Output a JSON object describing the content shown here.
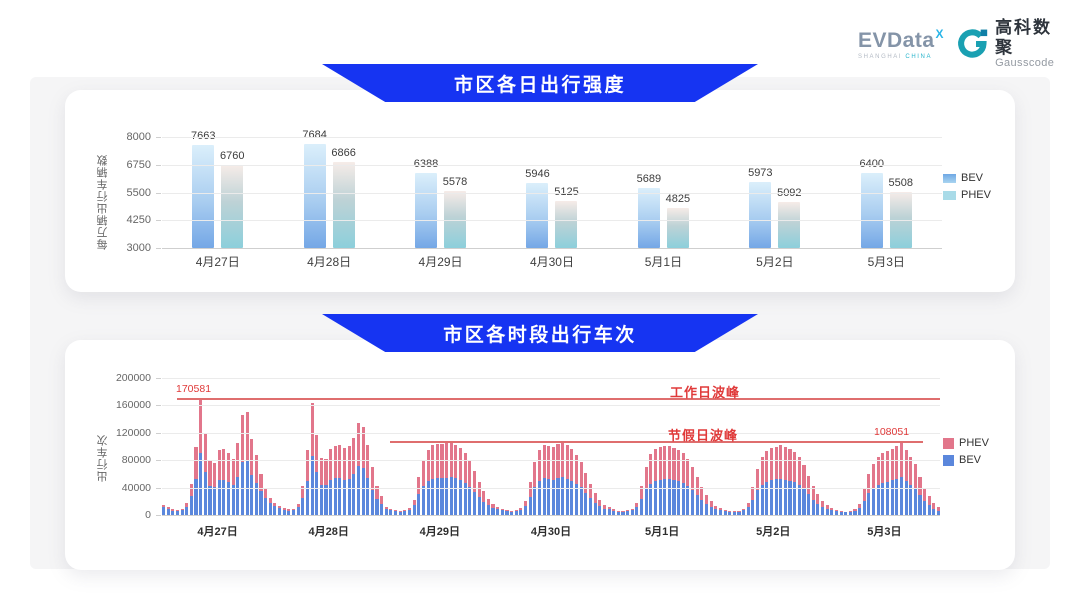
{
  "header": {
    "evdata": {
      "text": "EVData",
      "sup": "X",
      "sub_left": "SHANGHAI",
      "sub_right": "CHINA"
    },
    "gausscode": {
      "cn": "高科数聚",
      "en": "Gausscode"
    }
  },
  "colors": {
    "banner_blue": "#1634f2",
    "bev_blue": "#5b87dc",
    "phev_pink": "#e2768b",
    "annotation_red": "#e03a3a",
    "refline_red": "#df6e6e"
  },
  "chart_data": [
    {
      "type": "bar",
      "title": "市区各日出行强度",
      "ylabel": "每万辆出行车辆数",
      "xlabel": "",
      "categories": [
        "4月27日",
        "4月28日",
        "4月29日",
        "4月30日",
        "5月1日",
        "5月2日",
        "5月3日"
      ],
      "series": [
        {
          "name": "BEV",
          "values": [
            7663,
            7684,
            6388,
            5946,
            5689,
            5973,
            6400
          ]
        },
        {
          "name": "PHEV",
          "values": [
            6760,
            6866,
            5578,
            5125,
            4825,
            5092,
            5508
          ]
        }
      ],
      "ylim": [
        3000,
        8000
      ],
      "yticks": [
        3000,
        4250,
        5500,
        6750,
        8000
      ],
      "grid": true,
      "legend_position": "right",
      "legend": [
        "BEV",
        "PHEV"
      ]
    },
    {
      "type": "stacked-bar",
      "title": "市区各时段出行车次",
      "ylabel": "出行车次",
      "xlabel": "",
      "categories": [
        "4月27日",
        "4月28日",
        "4月29日",
        "4月30日",
        "5月1日",
        "5月2日",
        "5月3日"
      ],
      "ylim": [
        0,
        200000
      ],
      "yticks": [
        0,
        40000,
        80000,
        120000,
        160000,
        200000
      ],
      "grid": true,
      "legend_position": "right",
      "legend": [
        "PHEV",
        "BEV"
      ],
      "bars_per_day": 24,
      "days": [
        {
          "label": "4月27日",
          "total": [
            15200,
            11300,
            8400,
            7100,
            8800,
            17600,
            46000,
            99800,
            170581,
            118900,
            80600,
            76200,
            95300,
            96800,
            90500,
            82100,
            105600,
            145800,
            150200,
            110400,
            88300,
            60500,
            38200,
            25100
          ],
          "bev": [
            11400,
            8500,
            6300,
            5300,
            6600,
            12300,
            27600,
            52900,
            90400,
            63000,
            42700,
            40400,
            50500,
            51300,
            48000,
            43500,
            56000,
            77300,
            79600,
            58500,
            46800,
            34500,
            24800,
            17600
          ]
        },
        {
          "label": "4月28日",
          "total": [
            17800,
            13100,
            9800,
            8200,
            9100,
            16400,
            42300,
            94600,
            163800,
            117200,
            83400,
            81900,
            96100,
            100800,
            102900,
            97200,
            100300,
            111800,
            133900,
            128300,
            102700,
            69800,
            42100,
            28400
          ],
          "bev": [
            13400,
            9800,
            7400,
            6200,
            6800,
            11500,
            25400,
            50100,
            86800,
            62100,
            44200,
            43400,
            50900,
            53400,
            54500,
            51500,
            53200,
            59300,
            71000,
            68000,
            54400,
            37000,
            23200,
            15600
          ]
        },
        {
          "label": "4月29日",
          "total": [
            12100,
            9200,
            7000,
            6100,
            7200,
            10300,
            22400,
            55200,
            80100,
            95400,
            101800,
            104200,
            103100,
            104900,
            107300,
            102600,
            97800,
            89900,
            79600,
            64800,
            47900,
            34700,
            23800,
            16200
          ],
          "bev": [
            9100,
            6900,
            5300,
            4600,
            5400,
            7700,
            14600,
            30400,
            42500,
            49600,
            52900,
            54200,
            53600,
            54500,
            55800,
            53400,
            50900,
            46700,
            41400,
            33700,
            26300,
            19100,
            14300,
            9700
          ]
        },
        {
          "label": "4月30日",
          "total": [
            11900,
            9000,
            6900,
            6000,
            7100,
            10100,
            20300,
            48200,
            77800,
            94700,
            102600,
            100900,
            99200,
            103800,
            106800,
            101700,
            96300,
            88100,
            77900,
            61800,
            44600,
            31900,
            21700,
            14800
          ],
          "bev": [
            8900,
            6800,
            5200,
            4500,
            5300,
            7600,
            13200,
            26500,
            41200,
            49200,
            53400,
            52500,
            51600,
            54000,
            55500,
            52900,
            50100,
            45800,
            40500,
            32100,
            24500,
            17500,
            13000,
            8900
          ]
        },
        {
          "label": "5月1日",
          "total": [
            11200,
            8300,
            6400,
            5800,
            6900,
            9400,
            18200,
            42100,
            70300,
            88400,
            96100,
            98700,
            100600,
            100200,
            97900,
            95300,
            90200,
            82400,
            70100,
            55300,
            40200,
            29800,
            19900,
            13700
          ],
          "bev": [
            8400,
            6200,
            4900,
            4400,
            5200,
            7100,
            11800,
            23200,
            37300,
            46000,
            50000,
            51300,
            52300,
            52100,
            50900,
            49600,
            46900,
            42800,
            36500,
            28800,
            22100,
            16400,
            11900,
            8200
          ]
        },
        {
          "label": "5月2日",
          "total": [
            10400,
            7900,
            6100,
            5400,
            6300,
            8800,
            17100,
            40300,
            67800,
            85200,
            93700,
            97800,
            99900,
            101700,
            99200,
            95800,
            91600,
            84300,
            72400,
            57600,
            41800,
            30100,
            20300,
            13900
          ],
          "bev": [
            7800,
            5900,
            4600,
            4100,
            4700,
            6600,
            11100,
            22200,
            35900,
            44300,
            48700,
            50900,
            52000,
            52900,
            51600,
            49800,
            47600,
            43800,
            37600,
            30000,
            21700,
            16600,
            12200,
            8300
          ]
        },
        {
          "label": "5月3日",
          "total": [
            9800,
            7300,
            5800,
            5100,
            6100,
            8200,
            15900,
            37600,
            59800,
            74900,
            84700,
            90200,
            93800,
            97100,
            100400,
            108051,
            94600,
            84800,
            74600,
            55200,
            39700,
            27800,
            18100,
            12300
          ],
          "bev": [
            7400,
            5500,
            4400,
            3800,
            4600,
            6200,
            10300,
            20700,
            31700,
            39000,
            44000,
            46900,
            48800,
            50500,
            52200,
            56200,
            49200,
            44100,
            38800,
            28700,
            20600,
            14500,
            9400,
            6400
          ]
        }
      ],
      "annotations": {
        "workday_peak_value": 170581,
        "workday_peak_label": "170581",
        "workday_line_text": "工作日波峰",
        "holiday_peak_value": 108051,
        "holiday_peak_label": "108051",
        "holiday_line_text": "节假日波峰"
      }
    }
  ]
}
